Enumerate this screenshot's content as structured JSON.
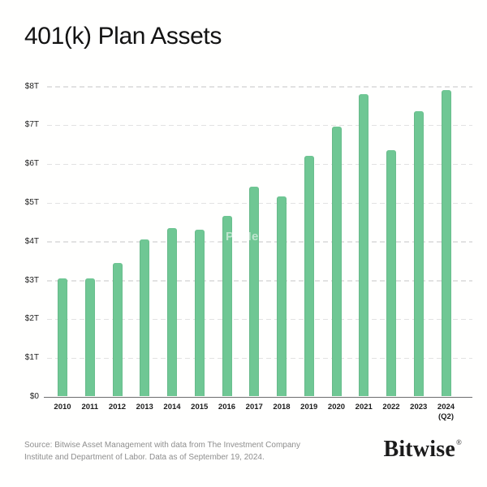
{
  "title": "401(k) Plan Assets",
  "watermark": {
    "text": "PANews"
  },
  "footer": {
    "source_line1": "Source: Bitwise Asset Management with data from The Investment Company",
    "source_line2": "Institute and Department of Labor. Data as of September 19, 2024.",
    "brand": "Bitwise",
    "brand_mark": "®"
  },
  "colors": {
    "bar": "#6fc794",
    "grid": "#e2e2e2",
    "axis": "#6e6e6e",
    "title_text": "#131313",
    "footer_text": "#8e8e8e",
    "background": "#ffffff"
  },
  "chart_data": {
    "type": "bar",
    "title": "401(k) Plan Assets",
    "categories": [
      "2010",
      "2011",
      "2012",
      "2013",
      "2014",
      "2015",
      "2016",
      "2017",
      "2018",
      "2019",
      "2020",
      "2021",
      "2022",
      "2023",
      "2024\n(Q2)"
    ],
    "values": [
      3.05,
      3.05,
      3.45,
      4.05,
      4.35,
      4.3,
      4.65,
      5.4,
      5.15,
      6.2,
      6.95,
      7.8,
      6.35,
      7.35,
      7.9
    ],
    "unit": "trillion USD",
    "xlabel": "",
    "ylabel": "",
    "y_ticks": [
      "$0",
      "$1T",
      "$2T",
      "$3T",
      "$4T",
      "$5T",
      "$6T",
      "$7T",
      "$8T"
    ],
    "y_tick_values": [
      0,
      1,
      2,
      3,
      4,
      5,
      6,
      7,
      8
    ],
    "ylim": [
      0,
      8.3
    ],
    "grid": "horizontal-dashed",
    "legend": "none",
    "bar_color": "#6fc794"
  }
}
